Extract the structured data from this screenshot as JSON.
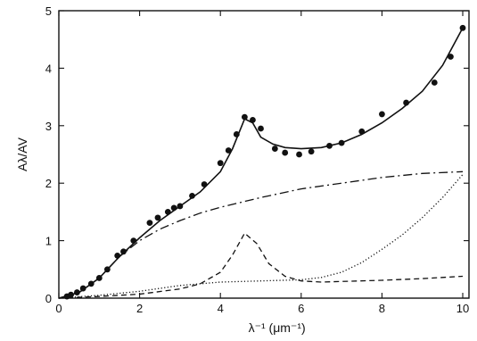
{
  "chart_data": {
    "type": "line",
    "title": "",
    "xlabel": "λ⁻¹ (μm⁻¹)",
    "ylabel": "Aλ/AV",
    "xlim": [
      0,
      10.5
    ],
    "ylim": [
      0,
      5
    ],
    "x_ticks": [
      0,
      2,
      4,
      6,
      8,
      10
    ],
    "y_ticks": [
      0,
      1,
      2,
      3,
      4,
      5
    ],
    "grid": false,
    "legend": "none",
    "points": {
      "x": [
        0.2,
        0.3,
        0.45,
        0.6,
        0.8,
        1.0,
        1.2,
        1.45,
        1.6,
        1.85,
        2.25,
        2.45,
        2.7,
        2.85,
        3.0,
        3.3,
        3.6,
        4.0,
        4.2,
        4.4,
        4.6,
        4.8,
        5.0,
        5.35,
        5.6,
        5.95,
        6.25,
        6.7,
        7.0,
        7.5,
        8.0,
        8.6,
        9.3,
        9.7,
        10.0
      ],
      "y": [
        0.03,
        0.06,
        0.1,
        0.17,
        0.25,
        0.35,
        0.5,
        0.74,
        0.81,
        1.0,
        1.31,
        1.4,
        1.5,
        1.57,
        1.6,
        1.78,
        1.98,
        2.35,
        2.57,
        2.85,
        3.15,
        3.1,
        2.95,
        2.6,
        2.53,
        2.5,
        2.55,
        2.65,
        2.7,
        2.9,
        3.2,
        3.4,
        3.75,
        4.2,
        4.7
      ]
    },
    "series": [
      {
        "style": "solid",
        "x": [
          0,
          0.5,
          1.0,
          1.5,
          2.0,
          2.5,
          3.0,
          3.5,
          4.0,
          4.3,
          4.6,
          4.8,
          5.0,
          5.3,
          5.6,
          6.0,
          6.5,
          7.0,
          7.5,
          8.0,
          8.5,
          9.0,
          9.5,
          10.0
        ],
        "y": [
          0.0,
          0.1,
          0.35,
          0.72,
          1.05,
          1.35,
          1.6,
          1.85,
          2.2,
          2.6,
          3.12,
          3.05,
          2.8,
          2.68,
          2.62,
          2.6,
          2.62,
          2.7,
          2.85,
          3.05,
          3.3,
          3.6,
          4.05,
          4.7
        ]
      },
      {
        "style": "dash-dot",
        "x": [
          0,
          0.5,
          1.0,
          1.5,
          2.0,
          2.5,
          3.0,
          3.5,
          4.0,
          5.0,
          6.0,
          7.0,
          8.0,
          9.0,
          10.0
        ],
        "y": [
          0.0,
          0.1,
          0.35,
          0.72,
          1.0,
          1.2,
          1.35,
          1.48,
          1.58,
          1.75,
          1.9,
          2.0,
          2.1,
          2.17,
          2.2
        ]
      },
      {
        "style": "dashed",
        "x": [
          0,
          1.0,
          2.0,
          3.0,
          3.5,
          4.0,
          4.3,
          4.6,
          4.9,
          5.2,
          5.6,
          6.0,
          6.5,
          7.0,
          8.0,
          9.0,
          10.0
        ],
        "y": [
          0.0,
          0.03,
          0.07,
          0.16,
          0.25,
          0.45,
          0.75,
          1.13,
          0.95,
          0.6,
          0.38,
          0.3,
          0.28,
          0.29,
          0.31,
          0.34,
          0.38
        ]
      },
      {
        "style": "dotted",
        "x": [
          0,
          1.0,
          2.0,
          3.0,
          4.0,
          5.0,
          6.0,
          6.5,
          7.0,
          7.5,
          8.0,
          8.5,
          9.0,
          9.5,
          10.0
        ],
        "y": [
          0.0,
          0.05,
          0.12,
          0.22,
          0.28,
          0.3,
          0.32,
          0.36,
          0.45,
          0.62,
          0.85,
          1.1,
          1.4,
          1.75,
          2.15
        ]
      }
    ]
  }
}
